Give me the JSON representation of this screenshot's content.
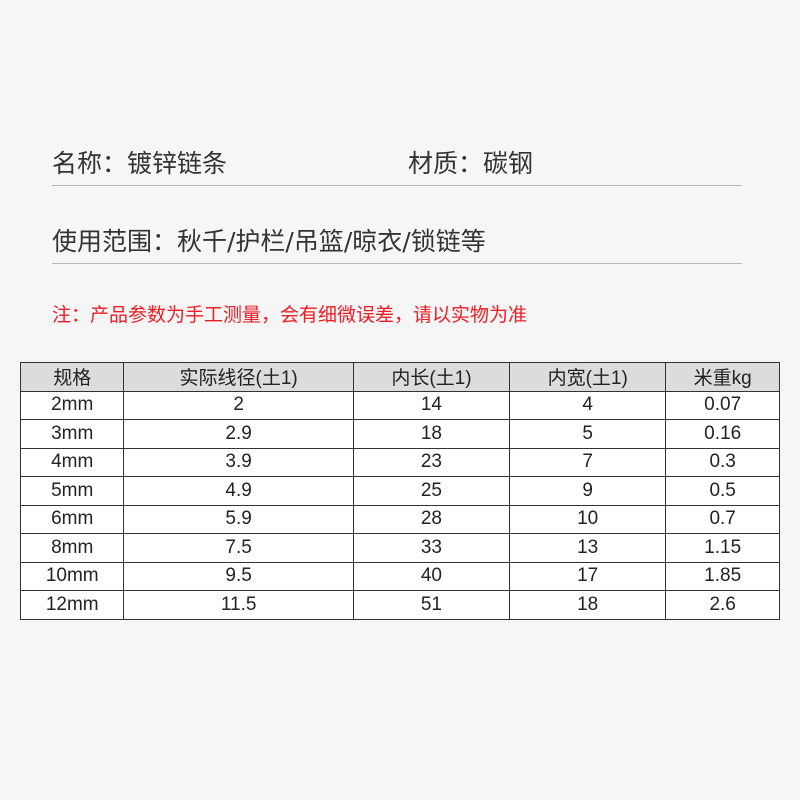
{
  "name_label": "名称：镀锌链条",
  "material_label": "材质：碳钢",
  "usage_label": "使用范围：秋千/护栏/吊篮/晾衣/锁链等",
  "note": "注：产品参数为手工测量，会有细微误差，请以实物为准",
  "table": {
    "headers": [
      "规格",
      "实际线径(土1)",
      "内长(土1)",
      "内宽(土1)",
      "米重kg"
    ],
    "rows": [
      [
        "2mm",
        "2",
        "14",
        "4",
        "0.07"
      ],
      [
        "3mm",
        "2.9",
        "18",
        "5",
        "0.16"
      ],
      [
        "4mm",
        "3.9",
        "23",
        "7",
        "0.3"
      ],
      [
        "5mm",
        "4.9",
        "25",
        "9",
        "0.5"
      ],
      [
        "6mm",
        "5.9",
        "28",
        "10",
        "0.7"
      ],
      [
        "8mm",
        "7.5",
        "33",
        "13",
        "1.15"
      ],
      [
        "10mm",
        "9.5",
        "40",
        "17",
        "1.85"
      ],
      [
        "12mm",
        "11.5",
        "51",
        "18",
        "2.6"
      ]
    ]
  },
  "colors": {
    "note": "#ee1c25",
    "header_bg": "#dcdcdc"
  }
}
